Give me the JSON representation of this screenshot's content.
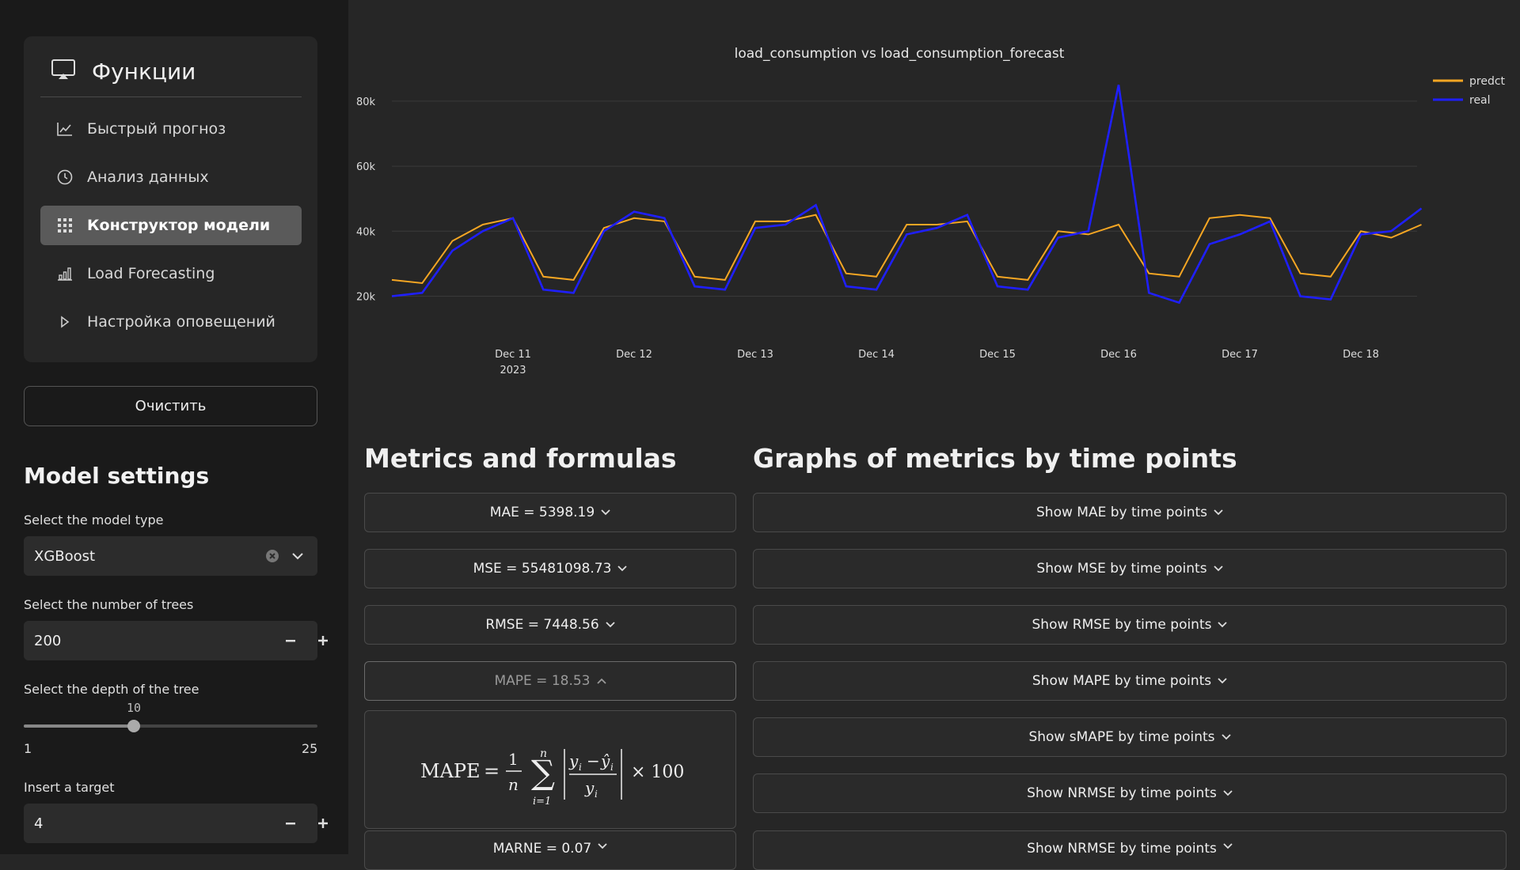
{
  "sidebar": {
    "menu_title": "Функции",
    "items": [
      {
        "label": "Быстрый прогноз",
        "icon": "line-chart-icon",
        "active": false
      },
      {
        "label": "Анализ данных",
        "icon": "clock-icon",
        "active": false
      },
      {
        "label": "Конструктор модели",
        "icon": "grid-icon",
        "active": true
      },
      {
        "label": "Load Forecasting",
        "icon": "bar-chart-icon",
        "active": false
      },
      {
        "label": "Настройка оповещений",
        "icon": "play-icon",
        "active": false
      }
    ],
    "clear_label": "Очистить",
    "model_settings_title": "Model settings",
    "model_type_label": "Select the model type",
    "model_type_value": "XGBoost",
    "trees_label": "Select the number of trees",
    "trees_value": "200",
    "depth_label": "Select the depth of the tree",
    "depth_value": "10",
    "depth_min": "1",
    "depth_max": "25",
    "target_label": "Insert a target",
    "target_value": "4"
  },
  "chart_data": {
    "type": "line",
    "title": "load_consumption vs load_consumption_forecast",
    "xlabel": "",
    "ylabel": "",
    "x_ticks": [
      "Dec 11",
      "Dec 12",
      "Dec 13",
      "Dec 14",
      "Dec 15",
      "Dec 16",
      "Dec 17",
      "Dec 18"
    ],
    "x_tick_sublabel": "2023",
    "y_ticks": [
      "20k",
      "40k",
      "60k",
      "80k"
    ],
    "ylim": [
      15000,
      88000
    ],
    "legend_position": "top-right",
    "x_days": [
      0,
      0.25,
      0.5,
      0.75,
      1,
      1.25,
      1.5,
      1.75,
      2,
      2.25,
      2.5,
      2.75,
      3,
      3.25,
      3.5,
      3.75,
      4,
      4.25,
      4.5,
      4.75,
      5,
      5.25,
      5.5,
      5.75,
      6,
      6.25,
      6.5,
      6.75,
      7,
      7.25,
      7.5,
      7.75,
      8,
      8.25,
      8.5
    ],
    "series": [
      {
        "name": "predct",
        "color": "#f5a623",
        "values": [
          25000,
          24000,
          37000,
          42000,
          44000,
          26000,
          25000,
          41000,
          44000,
          43000,
          26000,
          25000,
          43000,
          43000,
          45000,
          27000,
          26000,
          42000,
          42000,
          43000,
          26000,
          25000,
          40000,
          39000,
          42000,
          27000,
          26000,
          44000,
          45000,
          44000,
          27000,
          26000,
          40000,
          38000,
          42000
        ]
      },
      {
        "name": "real",
        "color": "#1f1fff",
        "values": [
          20000,
          21000,
          34000,
          40000,
          44000,
          22000,
          21000,
          40000,
          46000,
          44000,
          23000,
          22000,
          41000,
          42000,
          48000,
          23000,
          22000,
          39000,
          41000,
          45000,
          23000,
          22000,
          38000,
          40000,
          85000,
          21000,
          18000,
          36000,
          39000,
          43000,
          20000,
          19000,
          39000,
          40000,
          47000
        ]
      }
    ]
  },
  "metrics": {
    "title": "Metrics and formulas",
    "buttons": [
      {
        "label": "MAE = 5398.19",
        "expanded": false
      },
      {
        "label": "MSE = 55481098.73",
        "expanded": false
      },
      {
        "label": "RMSE = 7448.56",
        "expanded": false
      },
      {
        "label": "MAPE = 18.53",
        "expanded": true
      },
      {
        "label": "MARNE = 0.07",
        "expanded": false
      }
    ],
    "formula": {
      "lhs": "MAPE",
      "n": "n",
      "one": "1",
      "idx": "i=1",
      "y": "y",
      "yhat": "ŷ",
      "sub": "i",
      "times": "× 100"
    }
  },
  "graphs": {
    "title": "Graphs of metrics by time points",
    "buttons": [
      {
        "label": "Show MAE by time points"
      },
      {
        "label": "Show MSE by time points"
      },
      {
        "label": "Show RMSE by time points"
      },
      {
        "label": "Show MAPE by time points"
      },
      {
        "label": "Show sMAPE by time points"
      },
      {
        "label": "Show NRMSE by time points"
      },
      {
        "label": "Show NRMSE by time points"
      }
    ]
  }
}
